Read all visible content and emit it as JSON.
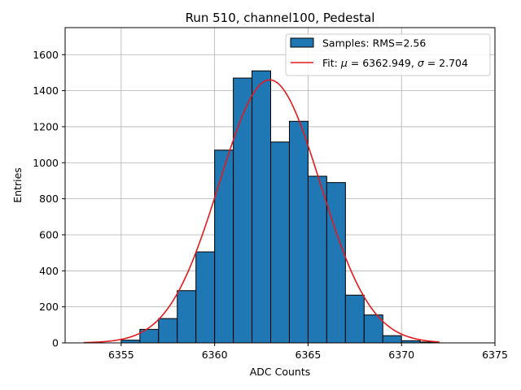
{
  "chart_data": {
    "type": "bar",
    "title": "Run 510, channel100, Pedestal",
    "xlabel": "ADC Counts",
    "ylabel": "Entries",
    "xlim": [
      6352,
      6375
    ],
    "ylim": [
      0,
      1750
    ],
    "xticks": [
      6355,
      6360,
      6365,
      6370,
      6375
    ],
    "yticks": [
      0,
      200,
      400,
      600,
      800,
      1000,
      1200,
      1400,
      1600
    ],
    "grid": true,
    "legend_position": "top-right",
    "histogram": {
      "name": "Samples: RMS=2.56",
      "bin_width": 1,
      "bin_edges_start": [
        6355,
        6356,
        6357,
        6358,
        6359,
        6360,
        6361,
        6362,
        6363,
        6364,
        6365,
        6366,
        6367,
        6368,
        6369,
        6370,
        6371
      ],
      "values": [
        15,
        75,
        135,
        290,
        505,
        1070,
        1470,
        1510,
        1115,
        1230,
        925,
        890,
        265,
        155,
        40,
        12,
        5
      ],
      "fill_color": "#1f77b4",
      "edge_color": "#000000"
    },
    "fit": {
      "name": "Fit: μ = 6362.949, σ = 2.704",
      "mu": 6362.949,
      "sigma": 2.704,
      "amplitude": 1460,
      "x_range": [
        6353,
        6372
      ],
      "color": "#e41a1c"
    }
  },
  "legend": {
    "hist_label": "Samples: RMS=2.56",
    "fit_label_prefix": "Fit: ",
    "fit_mu_symbol": "μ",
    "fit_mu_value": " = 6362.949, ",
    "fit_sigma_symbol": "σ",
    "fit_sigma_value": " = 2.704"
  }
}
